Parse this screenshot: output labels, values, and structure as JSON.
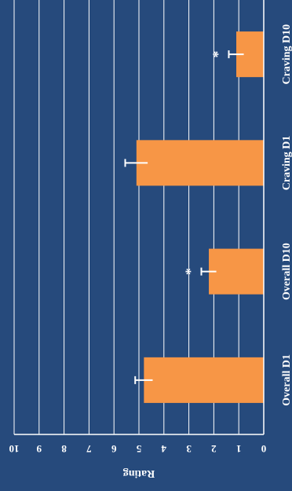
{
  "chart_data": {
    "type": "bar",
    "orientation": "rotated-90",
    "categories": [
      "Overall D1",
      "Overall D10",
      "Craving D1",
      "Craving D10"
    ],
    "values": [
      4.8,
      2.2,
      5.1,
      1.1
    ],
    "errors": [
      0.35,
      0.3,
      0.45,
      0.3
    ],
    "significance": [
      "",
      "*",
      "",
      "*"
    ],
    "ylabel": "Rating",
    "xlabel": "",
    "title": "",
    "ylim": [
      0,
      10
    ],
    "yticks": [
      0,
      1,
      2,
      3,
      4,
      5,
      6,
      7,
      8,
      9,
      10
    ],
    "grid": true,
    "colors": {
      "background": "#264a7c",
      "bar": "#f79646",
      "grid": "#ffffff",
      "text": "#ffffff",
      "error_bar": "#ffffff"
    }
  }
}
